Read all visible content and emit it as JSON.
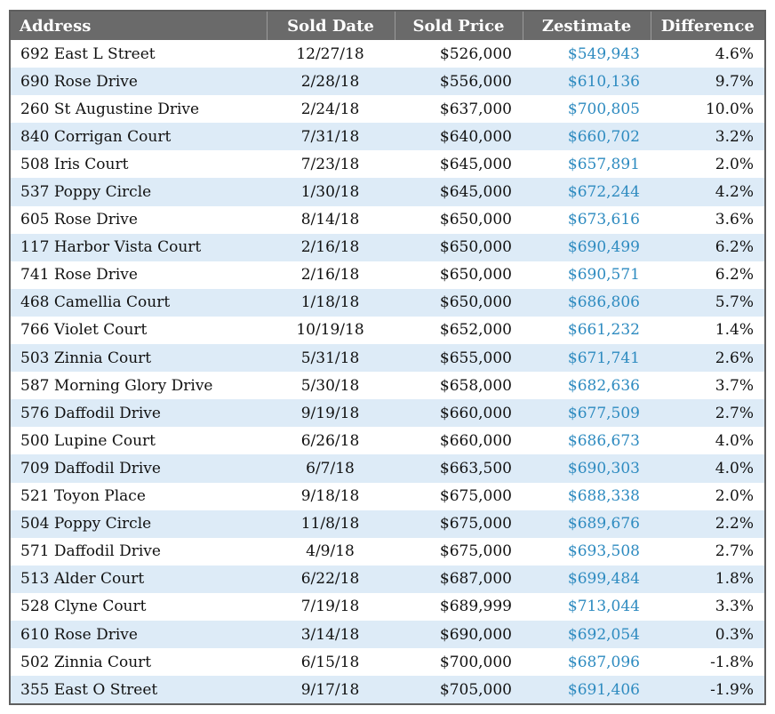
{
  "headers": {
    "address": "Address",
    "sold_date": "Sold Date",
    "sold_price": "Sold Price",
    "zestimate": "Zestimate",
    "difference": "Difference"
  },
  "colors": {
    "header_bg": "#6a6a6a",
    "header_text": "#ffffff",
    "stripe": "#ddebf7",
    "zestimate_text": "#2e8bc0"
  },
  "rows": [
    {
      "address": "692 East L Street",
      "sold_date": "12/27/18",
      "sold_price": "$526,000",
      "zestimate": "$549,943",
      "difference": "4.6%"
    },
    {
      "address": "690 Rose Drive",
      "sold_date": "2/28/18",
      "sold_price": "$556,000",
      "zestimate": "$610,136",
      "difference": "9.7%"
    },
    {
      "address": "260 St Augustine Drive",
      "sold_date": "2/24/18",
      "sold_price": "$637,000",
      "zestimate": "$700,805",
      "difference": "10.0%"
    },
    {
      "address": "840 Corrigan Court",
      "sold_date": "7/31/18",
      "sold_price": "$640,000",
      "zestimate": "$660,702",
      "difference": "3.2%"
    },
    {
      "address": "508 Iris Court",
      "sold_date": "7/23/18",
      "sold_price": "$645,000",
      "zestimate": "$657,891",
      "difference": "2.0%"
    },
    {
      "address": "537 Poppy Circle",
      "sold_date": "1/30/18",
      "sold_price": "$645,000",
      "zestimate": "$672,244",
      "difference": "4.2%"
    },
    {
      "address": "605 Rose Drive",
      "sold_date": "8/14/18",
      "sold_price": "$650,000",
      "zestimate": "$673,616",
      "difference": "3.6%"
    },
    {
      "address": "117 Harbor Vista Court",
      "sold_date": "2/16/18",
      "sold_price": "$650,000",
      "zestimate": "$690,499",
      "difference": "6.2%"
    },
    {
      "address": "741 Rose Drive",
      "sold_date": "2/16/18",
      "sold_price": "$650,000",
      "zestimate": "$690,571",
      "difference": "6.2%"
    },
    {
      "address": "468 Camellia Court",
      "sold_date": "1/18/18",
      "sold_price": "$650,000",
      "zestimate": "$686,806",
      "difference": "5.7%"
    },
    {
      "address": "766 Violet Court",
      "sold_date": "10/19/18",
      "sold_price": "$652,000",
      "zestimate": "$661,232",
      "difference": "1.4%"
    },
    {
      "address": "503 Zinnia Court",
      "sold_date": "5/31/18",
      "sold_price": "$655,000",
      "zestimate": "$671,741",
      "difference": "2.6%"
    },
    {
      "address": "587 Morning Glory Drive",
      "sold_date": "5/30/18",
      "sold_price": "$658,000",
      "zestimate": "$682,636",
      "difference": "3.7%"
    },
    {
      "address": "576 Daffodil Drive",
      "sold_date": "9/19/18",
      "sold_price": "$660,000",
      "zestimate": "$677,509",
      "difference": "2.7%"
    },
    {
      "address": "500 Lupine Court",
      "sold_date": "6/26/18",
      "sold_price": "$660,000",
      "zestimate": "$686,673",
      "difference": "4.0%"
    },
    {
      "address": "709 Daffodil Drive",
      "sold_date": "6/7/18",
      "sold_price": "$663,500",
      "zestimate": "$690,303",
      "difference": "4.0%"
    },
    {
      "address": "521 Toyon Place",
      "sold_date": "9/18/18",
      "sold_price": "$675,000",
      "zestimate": "$688,338",
      "difference": "2.0%"
    },
    {
      "address": "504 Poppy Circle",
      "sold_date": "11/8/18",
      "sold_price": "$675,000",
      "zestimate": "$689,676",
      "difference": "2.2%"
    },
    {
      "address": "571 Daffodil Drive",
      "sold_date": "4/9/18",
      "sold_price": "$675,000",
      "zestimate": "$693,508",
      "difference": "2.7%"
    },
    {
      "address": "513 Alder Court",
      "sold_date": "6/22/18",
      "sold_price": "$687,000",
      "zestimate": "$699,484",
      "difference": "1.8%"
    },
    {
      "address": "528 Clyne Court",
      "sold_date": "7/19/18",
      "sold_price": "$689,999",
      "zestimate": "$713,044",
      "difference": "3.3%"
    },
    {
      "address": "610 Rose Drive",
      "sold_date": "3/14/18",
      "sold_price": "$690,000",
      "zestimate": "$692,054",
      "difference": "0.3%"
    },
    {
      "address": "502 Zinnia Court",
      "sold_date": "6/15/18",
      "sold_price": "$700,000",
      "zestimate": "$687,096",
      "difference": "-1.8%"
    },
    {
      "address": "355 East O Street",
      "sold_date": "9/17/18",
      "sold_price": "$705,000",
      "zestimate": "$691,406",
      "difference": "-1.9%"
    }
  ]
}
